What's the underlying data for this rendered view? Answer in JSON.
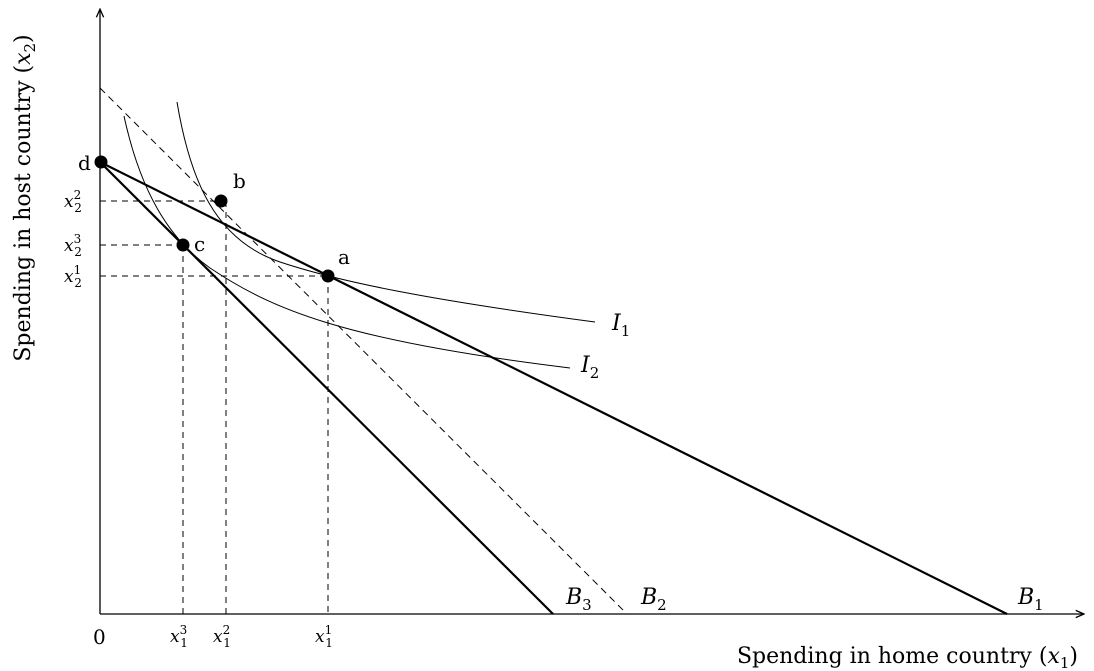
{
  "axes": {
    "y_title": "Spending in host country (",
    "y_title_var": "x",
    "y_title_sub": "2",
    "y_title_end": ")",
    "x_title": "Spending in home country (",
    "x_title_var": "x",
    "x_title_sub": "1",
    "x_title_end": ")",
    "origin_label": "0"
  },
  "points": {
    "a": "a",
    "b": "b",
    "c": "c",
    "d": "d"
  },
  "x_ticks": [
    {
      "var": "x",
      "sub": "1",
      "sup": "3"
    },
    {
      "var": "x",
      "sub": "1",
      "sup": "2"
    },
    {
      "var": "x",
      "sub": "1",
      "sup": "1"
    }
  ],
  "y_ticks": [
    {
      "var": "x",
      "sub": "2",
      "sup": "2"
    },
    {
      "var": "x",
      "sub": "2",
      "sup": "3"
    },
    {
      "var": "x",
      "sub": "2",
      "sup": "1"
    }
  ],
  "budget_lines": [
    {
      "name": "B",
      "sub": "1"
    },
    {
      "name": "B",
      "sub": "2"
    },
    {
      "name": "B",
      "sub": "3"
    }
  ],
  "indifference_curves": [
    {
      "name": "I",
      "sub": "1"
    },
    {
      "name": "I",
      "sub": "2"
    }
  ]
}
